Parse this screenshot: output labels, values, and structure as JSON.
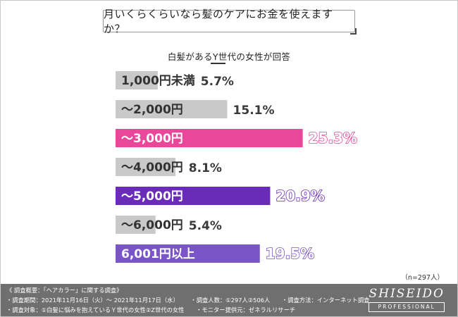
{
  "question": "月いくらくらいなら髪のケアにお金を使えますか？",
  "subtitle": "白髪があるY世代の女性が回答",
  "sample_note": "（n=297人）",
  "chart_data": {
    "type": "bar",
    "orientation": "horizontal",
    "title": "月いくらくらいなら髪のケアにお金を使えますか？",
    "subtitle": "白髪があるY世代の女性が回答",
    "categories": [
      "1,000円未満",
      "～2,000円",
      "～3,000円",
      "～4,000円",
      "～5,000円",
      "～6,000円",
      "6,001円以上"
    ],
    "values": [
      5.7,
      15.1,
      25.3,
      8.1,
      20.9,
      5.4,
      19.5
    ],
    "value_labels": [
      "5.7%",
      "15.1%",
      "25.3%",
      "8.1%",
      "20.9%",
      "5.4%",
      "19.5%"
    ],
    "unit": "%",
    "bar_colors": [
      "#c9c9c9",
      "#c9c9c9",
      "#e8479a",
      "#c9c9c9",
      "#6a2bb8",
      "#c9c9c9",
      "#7a55c8"
    ],
    "label_colors": [
      "#333333",
      "#333333",
      "#ffffff",
      "#333333",
      "#ffffff",
      "#333333",
      "#ffffff"
    ],
    "highlight_colors": {
      "pink": "#e8479a",
      "purple": "#6a2bb8"
    },
    "grid": false,
    "legend": "none"
  },
  "footer": {
    "title": "《 調査概要：「ヘアカラー」に関する調査》",
    "line1": [
      "・調査期間：2021年11月16日（火）～ 2021年11月17日（水）",
      "・調査人数：①297人②506人",
      "・調査方法：インターネット調査"
    ],
    "line2": [
      "・調査対象：①白髪に悩みを抱えているＹ世代の女性②Z世代の女性",
      "・モニター提供元：ゼネラルリサーチ"
    ],
    "logo_main": "SHISEIDO",
    "logo_sub": "PROFESSIONAL"
  }
}
